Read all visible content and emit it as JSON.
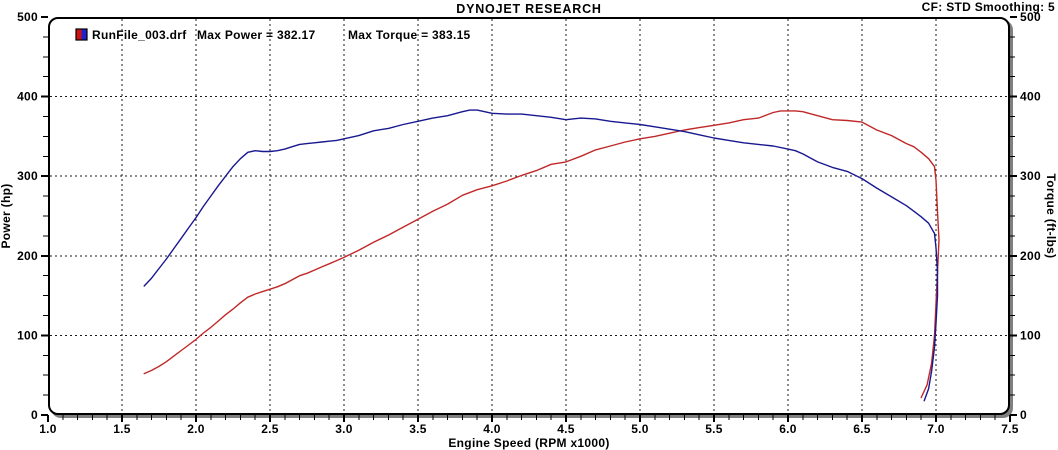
{
  "header": {
    "title": "DYNOJET RESEARCH",
    "correction": "CF: STD  Smoothing: 5"
  },
  "legend": {
    "file": "RunFile_003.drf",
    "max_power": "Max Power = 382.17",
    "max_torque": "Max Torque = 383.15",
    "marker_left_color": "#cc1111",
    "marker_right_color": "#2222cc"
  },
  "colors": {
    "grid": "#1a1a1a",
    "border": "#000000",
    "shadow": "#7f7f7f",
    "background": "#ffffff",
    "power_curve": "#c02828",
    "torque_curve": "#181890"
  },
  "chart_data": {
    "type": "line",
    "title": "DYNOJET RESEARCH",
    "xlabel": "Engine Speed (RPM x1000)",
    "ylabel_left": "Power (hp)",
    "ylabel_right": "Torque (ft-lbs)",
    "xlim": [
      1.0,
      7.5
    ],
    "ylim": [
      0,
      500
    ],
    "grid": "dashed",
    "legend_position": "top-left",
    "x_major_ticks": [
      1.0,
      1.5,
      2.0,
      2.5,
      3.0,
      3.5,
      4.0,
      4.5,
      5.0,
      5.5,
      6.0,
      6.5,
      7.0,
      7.5
    ],
    "x_tick_labels": [
      "1.0",
      "1.5",
      "2.0",
      "2.5",
      "3.0",
      "3.5",
      "4.0",
      "4.5",
      "5.0",
      "5.5",
      "6.0",
      "6.5",
      "7.0",
      "7.5"
    ],
    "x_minor_step": 0.1,
    "y_major_ticks": [
      0,
      100,
      200,
      300,
      400,
      500
    ],
    "y_tick_labels": [
      "0",
      "100",
      "200",
      "300",
      "400",
      "500"
    ],
    "y_minor_step": 25,
    "max_power": 382.17,
    "max_torque": 383.15,
    "series": [
      {
        "name": "Power (hp)",
        "axis": "left",
        "color": "#c02828",
        "points": [
          [
            1.65,
            52
          ],
          [
            1.7,
            56
          ],
          [
            1.75,
            61
          ],
          [
            1.8,
            67
          ],
          [
            1.85,
            74
          ],
          [
            1.9,
            81
          ],
          [
            1.95,
            88
          ],
          [
            2.0,
            95
          ],
          [
            2.05,
            103
          ],
          [
            2.1,
            110
          ],
          [
            2.15,
            118
          ],
          [
            2.2,
            126
          ],
          [
            2.25,
            133
          ],
          [
            2.3,
            141
          ],
          [
            2.35,
            148
          ],
          [
            2.4,
            152
          ],
          [
            2.45,
            155
          ],
          [
            2.5,
            158
          ],
          [
            2.55,
            161
          ],
          [
            2.6,
            165
          ],
          [
            2.65,
            170
          ],
          [
            2.7,
            175
          ],
          [
            2.75,
            178
          ],
          [
            2.8,
            182
          ],
          [
            2.85,
            186
          ],
          [
            2.9,
            190
          ],
          [
            2.95,
            194
          ],
          [
            3.0,
            198
          ],
          [
            3.1,
            207
          ],
          [
            3.2,
            217
          ],
          [
            3.3,
            226
          ],
          [
            3.4,
            236
          ],
          [
            3.5,
            246
          ],
          [
            3.6,
            256
          ],
          [
            3.7,
            265
          ],
          [
            3.8,
            276
          ],
          [
            3.9,
            283
          ],
          [
            4.0,
            288
          ],
          [
            4.1,
            294
          ],
          [
            4.2,
            301
          ],
          [
            4.3,
            307
          ],
          [
            4.4,
            315
          ],
          [
            4.5,
            318
          ],
          [
            4.6,
            325
          ],
          [
            4.7,
            333
          ],
          [
            4.8,
            338
          ],
          [
            4.9,
            343
          ],
          [
            5.0,
            347
          ],
          [
            5.1,
            350
          ],
          [
            5.2,
            354
          ],
          [
            5.3,
            358
          ],
          [
            5.4,
            361
          ],
          [
            5.5,
            364
          ],
          [
            5.6,
            367
          ],
          [
            5.7,
            371
          ],
          [
            5.8,
            373
          ],
          [
            5.9,
            380
          ],
          [
            5.95,
            382
          ],
          [
            6.0,
            382
          ],
          [
            6.05,
            382
          ],
          [
            6.1,
            381
          ],
          [
            6.2,
            376
          ],
          [
            6.3,
            371
          ],
          [
            6.4,
            370
          ],
          [
            6.5,
            368
          ],
          [
            6.6,
            358
          ],
          [
            6.7,
            351
          ],
          [
            6.8,
            341
          ],
          [
            6.85,
            337
          ],
          [
            6.9,
            330
          ],
          [
            6.95,
            322
          ],
          [
            6.99,
            312
          ],
          [
            7.0,
            295
          ],
          [
            7.01,
            255
          ],
          [
            7.02,
            220
          ],
          [
            7.01,
            180
          ],
          [
            7.0,
            140
          ],
          [
            6.99,
            100
          ],
          [
            6.97,
            65
          ],
          [
            6.94,
            38
          ],
          [
            6.9,
            22
          ]
        ]
      },
      {
        "name": "Torque (ft-lbs)",
        "axis": "right",
        "color": "#181890",
        "points": [
          [
            1.65,
            162
          ],
          [
            1.7,
            172
          ],
          [
            1.75,
            184
          ],
          [
            1.8,
            196
          ],
          [
            1.85,
            209
          ],
          [
            1.9,
            222
          ],
          [
            1.95,
            235
          ],
          [
            2.0,
            248
          ],
          [
            2.05,
            262
          ],
          [
            2.1,
            275
          ],
          [
            2.15,
            288
          ],
          [
            2.2,
            300
          ],
          [
            2.25,
            312
          ],
          [
            2.3,
            322
          ],
          [
            2.35,
            330
          ],
          [
            2.4,
            332
          ],
          [
            2.45,
            331
          ],
          [
            2.5,
            331
          ],
          [
            2.55,
            332
          ],
          [
            2.6,
            334
          ],
          [
            2.65,
            337
          ],
          [
            2.7,
            340
          ],
          [
            2.75,
            341
          ],
          [
            2.8,
            342
          ],
          [
            2.85,
            343
          ],
          [
            2.9,
            344
          ],
          [
            2.95,
            345
          ],
          [
            3.0,
            347
          ],
          [
            3.1,
            351
          ],
          [
            3.2,
            357
          ],
          [
            3.3,
            360
          ],
          [
            3.4,
            365
          ],
          [
            3.5,
            369
          ],
          [
            3.6,
            373
          ],
          [
            3.7,
            376
          ],
          [
            3.8,
            381
          ],
          [
            3.85,
            383
          ],
          [
            3.9,
            383
          ],
          [
            3.95,
            381
          ],
          [
            4.0,
            379
          ],
          [
            4.1,
            378
          ],
          [
            4.2,
            378
          ],
          [
            4.3,
            376
          ],
          [
            4.4,
            374
          ],
          [
            4.5,
            371
          ],
          [
            4.6,
            373
          ],
          [
            4.7,
            372
          ],
          [
            4.8,
            369
          ],
          [
            4.9,
            367
          ],
          [
            5.0,
            365
          ],
          [
            5.1,
            362
          ],
          [
            5.2,
            359
          ],
          [
            5.3,
            356
          ],
          [
            5.4,
            352
          ],
          [
            5.5,
            348
          ],
          [
            5.6,
            345
          ],
          [
            5.7,
            342
          ],
          [
            5.8,
            340
          ],
          [
            5.9,
            338
          ],
          [
            6.0,
            334
          ],
          [
            6.05,
            332
          ],
          [
            6.1,
            328
          ],
          [
            6.2,
            318
          ],
          [
            6.3,
            311
          ],
          [
            6.4,
            306
          ],
          [
            6.5,
            297
          ],
          [
            6.6,
            285
          ],
          [
            6.7,
            274
          ],
          [
            6.8,
            263
          ],
          [
            6.85,
            256
          ],
          [
            6.9,
            249
          ],
          [
            6.95,
            241
          ],
          [
            6.99,
            228
          ],
          [
            7.0,
            210
          ],
          [
            7.01,
            180
          ],
          [
            7.01,
            150
          ],
          [
            7.0,
            115
          ],
          [
            6.99,
            85
          ],
          [
            6.97,
            55
          ],
          [
            6.95,
            33
          ],
          [
            6.92,
            18
          ]
        ]
      }
    ]
  }
}
